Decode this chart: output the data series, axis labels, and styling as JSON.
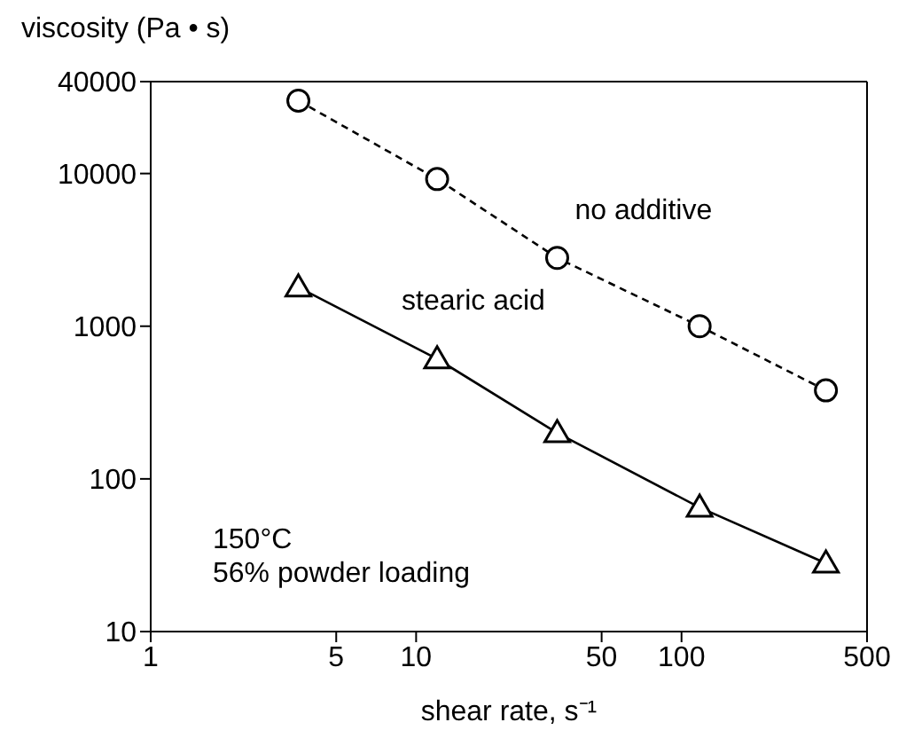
{
  "chart_data": {
    "type": "line",
    "xlabel": "shear rate, s⁻¹",
    "ylabel": "viscosity (Pa • s)",
    "x": [
      3.6,
      12,
      34,
      117,
      350
    ],
    "series": [
      {
        "name": "no additive",
        "color": "#000000",
        "values": [
          30000,
          9200,
          2800,
          1000,
          380
        ],
        "marker": "circle",
        "line_style": "dashed"
      },
      {
        "name": "stearic acid",
        "color": "#000000",
        "values": [
          1800,
          610,
          200,
          65,
          28
        ],
        "marker": "triangle",
        "line_style": "solid"
      }
    ],
    "xlim": [
      1,
      500
    ],
    "xticks": [
      1,
      5,
      10,
      50,
      100,
      500
    ],
    "ylim": [
      10,
      40000
    ],
    "yticks": [
      10,
      100,
      1000,
      10000,
      40000
    ],
    "log": "xy",
    "annotations": [
      "150°C",
      "56% powder loading"
    ]
  }
}
